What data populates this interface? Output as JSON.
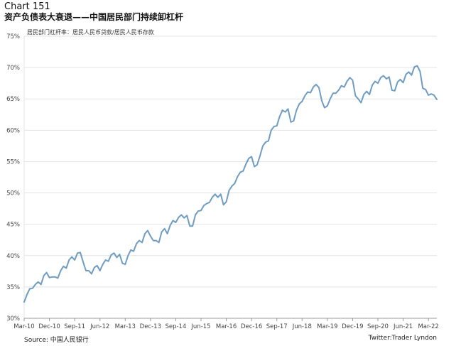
{
  "header": {
    "chart_number": "Chart 151",
    "title": "资产负债表大衰退——中国居民部门持续卸杠杆"
  },
  "footer": {
    "source": "Source: 中国人民银行",
    "credit": "Twitter:Trader Lyndon"
  },
  "colors": {
    "line": "#6f9cc2",
    "grid": "#e3e3e3",
    "axis": "#999999"
  },
  "chart_data": {
    "type": "line",
    "title": "资产负债表大衰退——中国居民部门持续卸杠杆",
    "legend": "居民部门杠杆率：居民人民币贷款/居民人民币存款",
    "ylim": [
      30,
      75
    ],
    "ytick_values": [
      30,
      35,
      40,
      45,
      50,
      55,
      60,
      65,
      70,
      75
    ],
    "ytick_labels": [
      "30%",
      "35%",
      "40%",
      "45%",
      "50%",
      "55%",
      "60%",
      "65%",
      "70%",
      "75%"
    ],
    "xlim": [
      "2010-03",
      "2022-06"
    ],
    "xtick_labels": [
      "Mar-10",
      "Dec-10",
      "Sep-11",
      "Jun-12",
      "Mar-13",
      "Dec-13",
      "Sep-14",
      "Jun-15",
      "Mar-16",
      "Dec-16",
      "Sep-17",
      "Jun-18",
      "Mar-19",
      "Dec-19",
      "Sep-20",
      "Jun-21",
      "Mar-22"
    ],
    "series": [
      {
        "x": [
          "2010-03",
          "2010-04",
          "2010-05",
          "2010-06",
          "2010-07",
          "2010-08",
          "2010-09",
          "2010-10",
          "2010-11",
          "2010-12",
          "2011-01",
          "2011-02",
          "2011-03",
          "2011-04",
          "2011-05",
          "2011-06",
          "2011-07",
          "2011-08",
          "2011-09",
          "2011-10",
          "2011-11",
          "2011-12",
          "2012-01",
          "2012-02",
          "2012-03",
          "2012-04",
          "2012-05",
          "2012-06",
          "2012-07",
          "2012-08",
          "2012-09",
          "2012-10",
          "2012-11",
          "2012-12",
          "2013-01",
          "2013-02",
          "2013-03",
          "2013-04",
          "2013-05",
          "2013-06",
          "2013-07",
          "2013-08",
          "2013-09",
          "2013-10",
          "2013-11",
          "2013-12",
          "2014-01",
          "2014-02",
          "2014-03",
          "2014-04",
          "2014-05",
          "2014-06",
          "2014-07",
          "2014-08",
          "2014-09",
          "2014-10",
          "2014-11",
          "2014-12",
          "2015-01",
          "2015-02",
          "2015-03",
          "2015-04",
          "2015-05",
          "2015-06",
          "2015-07",
          "2015-08",
          "2015-09",
          "2015-10",
          "2015-11",
          "2015-12",
          "2016-01",
          "2016-02",
          "2016-03",
          "2016-04",
          "2016-05",
          "2016-06",
          "2016-07",
          "2016-08",
          "2016-09",
          "2016-10",
          "2016-11",
          "2016-12",
          "2017-01",
          "2017-02",
          "2017-03",
          "2017-04",
          "2017-05",
          "2017-06",
          "2017-07",
          "2017-08",
          "2017-09",
          "2017-10",
          "2017-11",
          "2017-12",
          "2018-01",
          "2018-02",
          "2018-03",
          "2018-04",
          "2018-05",
          "2018-06",
          "2018-07",
          "2018-08",
          "2018-09",
          "2018-10",
          "2018-11",
          "2018-12",
          "2019-01",
          "2019-02",
          "2019-03",
          "2019-04",
          "2019-05",
          "2019-06",
          "2019-07",
          "2019-08",
          "2019-09",
          "2019-10",
          "2019-11",
          "2019-12",
          "2020-01",
          "2020-02",
          "2020-03",
          "2020-04",
          "2020-05",
          "2020-06",
          "2020-07",
          "2020-08",
          "2020-09",
          "2020-10",
          "2020-11",
          "2020-12",
          "2021-01",
          "2021-02",
          "2021-03",
          "2021-04",
          "2021-05",
          "2021-06",
          "2021-07",
          "2021-08",
          "2021-09",
          "2021-10",
          "2021-11",
          "2021-12",
          "2022-01",
          "2022-02",
          "2022-03",
          "2022-04",
          "2022-05",
          "2022-06"
        ],
        "values": [
          32.6,
          33.8,
          34.7,
          34.8,
          35.4,
          35.8,
          35.4,
          36.8,
          37.3,
          36.5,
          36.6,
          36.6,
          36.4,
          37.6,
          38.3,
          38.0,
          39.3,
          39.8,
          39.3,
          40.4,
          40.5,
          39.0,
          37.6,
          37.6,
          37.1,
          38.1,
          38.4,
          37.6,
          38.6,
          39.3,
          39.1,
          40.1,
          40.4,
          39.7,
          40.2,
          38.8,
          38.6,
          40.0,
          40.9,
          40.7,
          41.9,
          42.4,
          42.1,
          43.5,
          44.0,
          43.1,
          42.4,
          42.4,
          42.1,
          43.8,
          44.3,
          43.5,
          44.8,
          45.6,
          45.3,
          46.1,
          46.5,
          46.0,
          46.4,
          44.7,
          44.7,
          46.5,
          47.1,
          47.2,
          48.0,
          48.3,
          48.5,
          49.3,
          49.8,
          49.3,
          49.8,
          48.1,
          48.6,
          50.4,
          51.1,
          51.5,
          52.6,
          53.3,
          53.5,
          54.6,
          55.5,
          55.8,
          54.2,
          54.5,
          55.9,
          57.5,
          58.1,
          58.3,
          60.0,
          60.6,
          60.7,
          62.2,
          63.2,
          62.9,
          63.4,
          61.3,
          61.5,
          63.2,
          64.2,
          64.6,
          65.5,
          66.1,
          66.0,
          66.9,
          67.3,
          66.8,
          64.7,
          63.6,
          63.9,
          65.0,
          65.9,
          65.9,
          66.4,
          67.1,
          66.9,
          67.8,
          68.4,
          68.0,
          65.5,
          65.0,
          64.4,
          65.7,
          66.2,
          65.7,
          67.2,
          67.8,
          67.5,
          68.4,
          68.7,
          68.2,
          68.5,
          66.4,
          66.3,
          67.7,
          68.1,
          67.6,
          68.9,
          69.3,
          68.8,
          70.1,
          70.3,
          69.4,
          66.7,
          66.5,
          65.6,
          65.8,
          65.6,
          64.9
        ]
      }
    ]
  }
}
